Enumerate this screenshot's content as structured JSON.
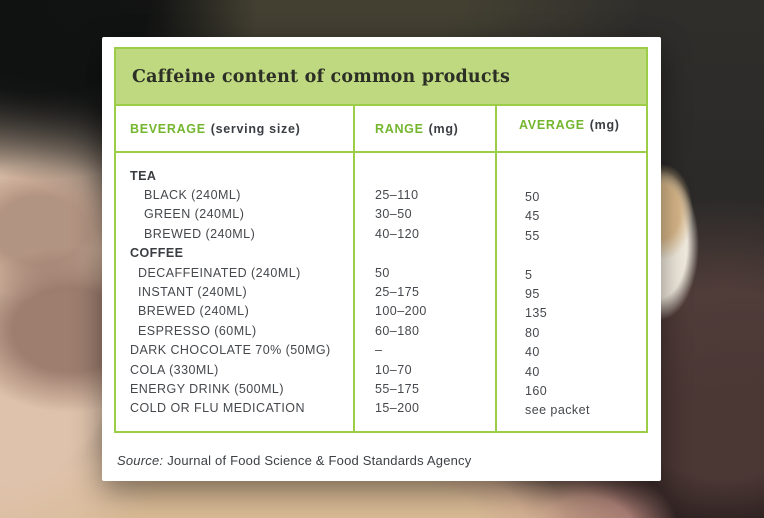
{
  "colors": {
    "green_border": "#9ccd47",
    "green_fill": "#bfd980",
    "green_text": "#74b62f",
    "text_dark": "#45484c"
  },
  "chart_data": {
    "type": "table",
    "title": "Caffeine content of common products",
    "columns": [
      {
        "label": "BEVERAGE",
        "unit": "(serving size)"
      },
      {
        "label": "RANGE",
        "unit": "(mg)"
      },
      {
        "label": "AVERAGE",
        "unit": "(mg)"
      }
    ],
    "rows": [
      {
        "name": "TEA",
        "range": "",
        "average": "",
        "bold": true,
        "indent": 0
      },
      {
        "name": "BLACK (240ML)",
        "range": "25–110",
        "average": "50",
        "bold": false,
        "indent": 2
      },
      {
        "name": "GREEN (240ML)",
        "range": "30–50",
        "average": "45",
        "bold": false,
        "indent": 2
      },
      {
        "name": "BREWED (240ML)",
        "range": "40–120",
        "average": "55",
        "bold": false,
        "indent": 2
      },
      {
        "name": "COFFEE",
        "range": "",
        "average": "",
        "bold": true,
        "indent": 0
      },
      {
        "name": "DECAFFEINATED (240ML)",
        "range": "50",
        "average": "5",
        "bold": false,
        "indent": 1
      },
      {
        "name": "INSTANT (240ML)",
        "range": "25–175",
        "average": "95",
        "bold": false,
        "indent": 1
      },
      {
        "name": "BREWED (240ML)",
        "range": "100–200",
        "average": "135",
        "bold": false,
        "indent": 1
      },
      {
        "name": "ESPRESSO (60ML)",
        "range": "60–180",
        "average": "80",
        "bold": false,
        "indent": 1
      },
      {
        "name": "DARK CHOCOLATE 70% (50MG)",
        "range": "–",
        "average": "40",
        "bold": false,
        "indent": 0
      },
      {
        "name": "COLA (330ML)",
        "range": "10–70",
        "average": "40",
        "bold": false,
        "indent": 0
      },
      {
        "name": "ENERGY DRINK (500ML)",
        "range": "55–175",
        "average": "160",
        "bold": false,
        "indent": 0
      },
      {
        "name": "COLD OR FLU MEDICATION",
        "range": "15–200",
        "average": "see packet",
        "bold": false,
        "indent": 0
      }
    ],
    "source_prefix": "Source:",
    "source": "Journal of Food Science & Food Standards Agency"
  }
}
